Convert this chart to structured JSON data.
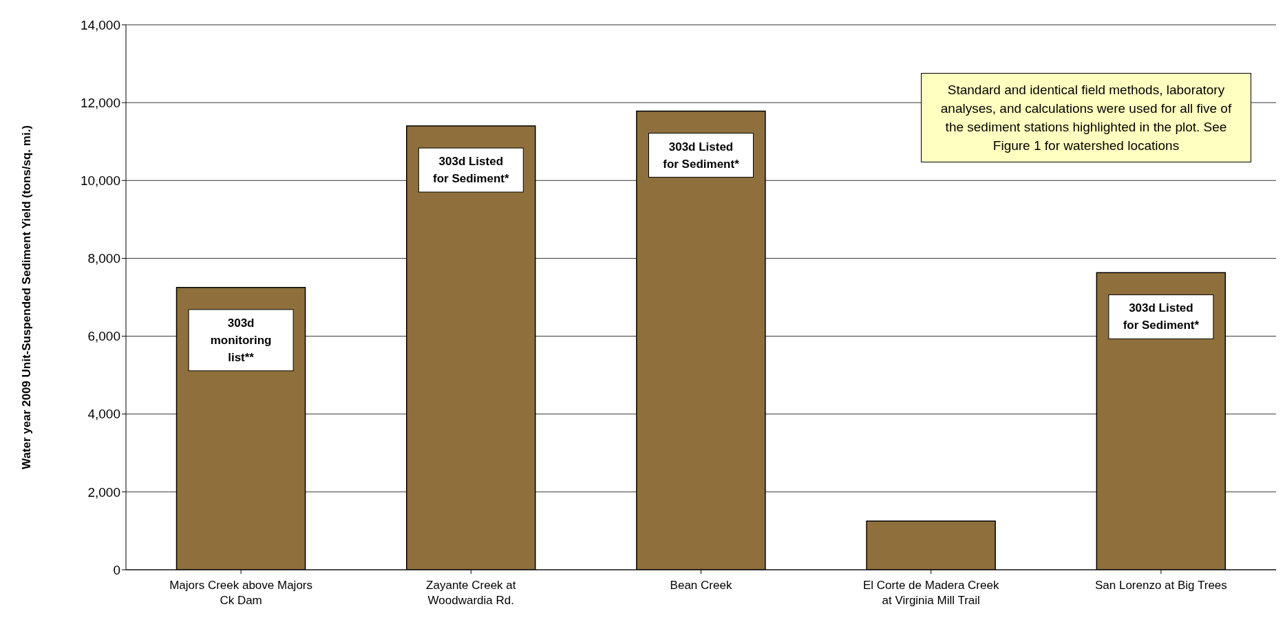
{
  "chart_data": {
    "type": "bar",
    "ylabel": "Water year 2009 Unit-Suspended Sediment Yield (tons/sq. mi.)",
    "categories": [
      "Majors Creek above Majors Ck Dam",
      "Zayante Creek at Woodwardia Rd.",
      "Bean Creek",
      "El Corte de Madera Creek at Virginia Mill Trail",
      "San Lorenzo at Big Trees"
    ],
    "values": [
      7250,
      11400,
      11780,
      1250,
      7630
    ],
    "color": "#8f703c",
    "ylim": [
      0,
      14000
    ],
    "yticks": [
      {
        "value": 0,
        "label": "0"
      },
      {
        "value": 2000,
        "label": "2,000"
      },
      {
        "value": 4000,
        "label": "4,000"
      },
      {
        "value": 6000,
        "label": "6,000"
      },
      {
        "value": 8000,
        "label": "8,000"
      },
      {
        "value": 10000,
        "label": "10,000"
      },
      {
        "value": 12000,
        "label": "12,000"
      },
      {
        "value": 14000,
        "label": "14,000"
      }
    ],
    "grid": "y",
    "annotations": [
      {
        "text": "303d monitoring list**",
        "x": "Majors Creek above Majors Ck Dam",
        "y": 7250
      },
      {
        "text": "303d Listed for Sediment*",
        "x": "Zayante Creek at Woodwardia Rd.",
        "y": 11400
      },
      {
        "text": "303d Listed for Sediment*",
        "x": "Bean Creek",
        "y": 11780
      },
      {
        "text": "303d Listed for Sediment*",
        "x": "San Lorenzo at Big Trees",
        "y": 7630
      },
      "Standard and identical field methods, laboratory analyses, and calculations were used for all five of the sediment stations highlighted in the plot. See Figure 1 for watershed locations"
    ]
  }
}
